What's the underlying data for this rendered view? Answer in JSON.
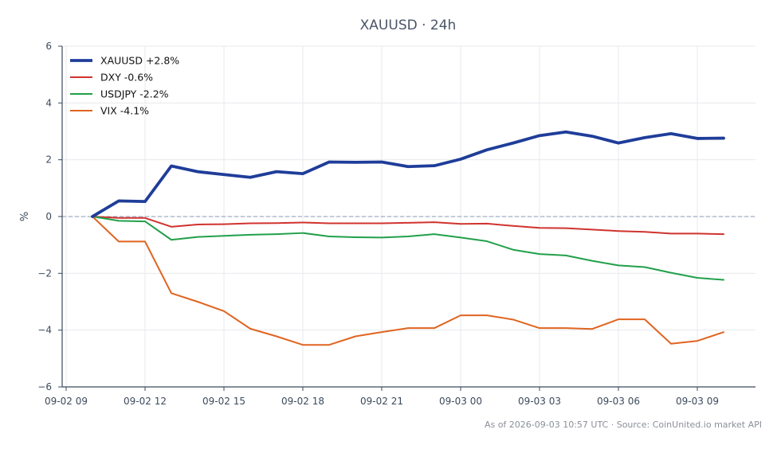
{
  "chart_data": {
    "type": "line",
    "title": "XAUUSD · 24h",
    "xlabel": "",
    "ylabel": "%",
    "ylim": [
      -6,
      6
    ],
    "yticks": [
      6,
      4,
      2,
      0,
      -2,
      -4,
      -6
    ],
    "ytick_labels": [
      "6",
      "4",
      "2",
      "0",
      "−2",
      "−4",
      "−6"
    ],
    "xticks": [
      {
        "h": 0,
        "label": "09-02 09"
      },
      {
        "h": 3,
        "label": "09-02 12"
      },
      {
        "h": 6,
        "label": "09-02 15"
      },
      {
        "h": 9,
        "label": "09-02 18"
      },
      {
        "h": 12,
        "label": "09-02 21"
      },
      {
        "h": 15,
        "label": "09-03 00"
      },
      {
        "h": 18,
        "label": "09-03 03"
      },
      {
        "h": 21,
        "label": "09-03 06"
      },
      {
        "h": 24,
        "label": "09-03 09"
      }
    ],
    "x_hours": [
      1,
      2,
      3,
      4,
      5,
      6,
      7,
      8,
      9,
      10,
      11,
      12,
      13,
      14,
      15,
      16,
      17,
      18,
      19,
      20,
      21,
      22,
      23,
      24,
      25
    ],
    "grid": true,
    "zero_line": true,
    "legend_position": "top-left",
    "series": [
      {
        "name": "XAUUSD +2.8%",
        "color": "#1f3d99",
        "width": 3.8,
        "values": [
          0.0,
          0.55,
          0.53,
          1.78,
          1.58,
          1.48,
          1.38,
          1.58,
          1.51,
          1.92,
          1.91,
          1.92,
          1.76,
          1.79,
          2.02,
          2.35,
          2.59,
          2.85,
          2.98,
          2.83,
          2.59,
          2.78,
          2.92,
          2.75,
          2.76
        ]
      },
      {
        "name": "DXY -0.6%",
        "color": "#d0332e",
        "width": 2,
        "values": [
          0.0,
          -0.05,
          -0.05,
          -0.36,
          -0.28,
          -0.27,
          -0.24,
          -0.23,
          -0.21,
          -0.24,
          -0.24,
          -0.24,
          -0.22,
          -0.2,
          -0.26,
          -0.25,
          -0.33,
          -0.4,
          -0.41,
          -0.46,
          -0.51,
          -0.54,
          -0.6,
          -0.6,
          -0.62
        ]
      },
      {
        "name": "USDJPY -2.2%",
        "color": "#21a04a",
        "width": 2,
        "values": [
          0.0,
          -0.15,
          -0.17,
          -0.82,
          -0.72,
          -0.68,
          -0.64,
          -0.62,
          -0.58,
          -0.7,
          -0.73,
          -0.74,
          -0.7,
          -0.62,
          -0.74,
          -0.87,
          -1.17,
          -1.32,
          -1.37,
          -1.56,
          -1.72,
          -1.78,
          -1.98,
          -2.16,
          -2.23
        ]
      },
      {
        "name": "VIX -4.1%",
        "color": "#e06420",
        "width": 2,
        "values": [
          0.0,
          -0.88,
          -0.88,
          -2.7,
          -3.0,
          -3.33,
          -3.95,
          -4.22,
          -4.52,
          -4.52,
          -4.22,
          -4.07,
          -3.93,
          -3.93,
          -3.48,
          -3.48,
          -3.63,
          -3.93,
          -3.93,
          -3.96,
          -3.62,
          -3.62,
          -4.48,
          -4.38,
          -4.07
        ]
      }
    ]
  },
  "footer": "As of 2026-09-03 10:57 UTC · Source: CoinUnited.io market API"
}
